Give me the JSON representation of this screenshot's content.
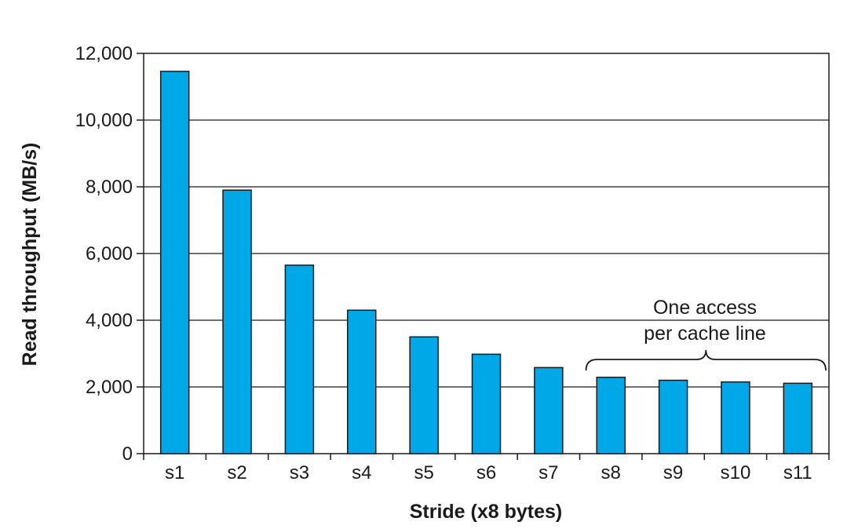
{
  "chart_data": {
    "type": "bar",
    "title": "",
    "xlabel": "Stride (x8 bytes)",
    "ylabel": "Read throughput (MB/s)",
    "categories": [
      "s1",
      "s2",
      "s3",
      "s4",
      "s5",
      "s6",
      "s7",
      "s8",
      "s9",
      "s10",
      "s11"
    ],
    "values": [
      11460,
      7900,
      5650,
      4300,
      3500,
      2980,
      2580,
      2290,
      2200,
      2150,
      2110
    ],
    "ylim": [
      0,
      12000
    ],
    "yticks": [
      0,
      2000,
      4000,
      6000,
      8000,
      10000,
      12000
    ],
    "ytick_labels": [
      "0",
      "2,000",
      "4,000",
      "6,000",
      "8,000",
      "10,000",
      "12,000"
    ],
    "grid": "horizontal",
    "bar_color": "#00a8e8",
    "annotation": {
      "lines": [
        "One access",
        "per cache line"
      ],
      "spans_categories": [
        "s8",
        "s9",
        "s10",
        "s11"
      ]
    }
  }
}
